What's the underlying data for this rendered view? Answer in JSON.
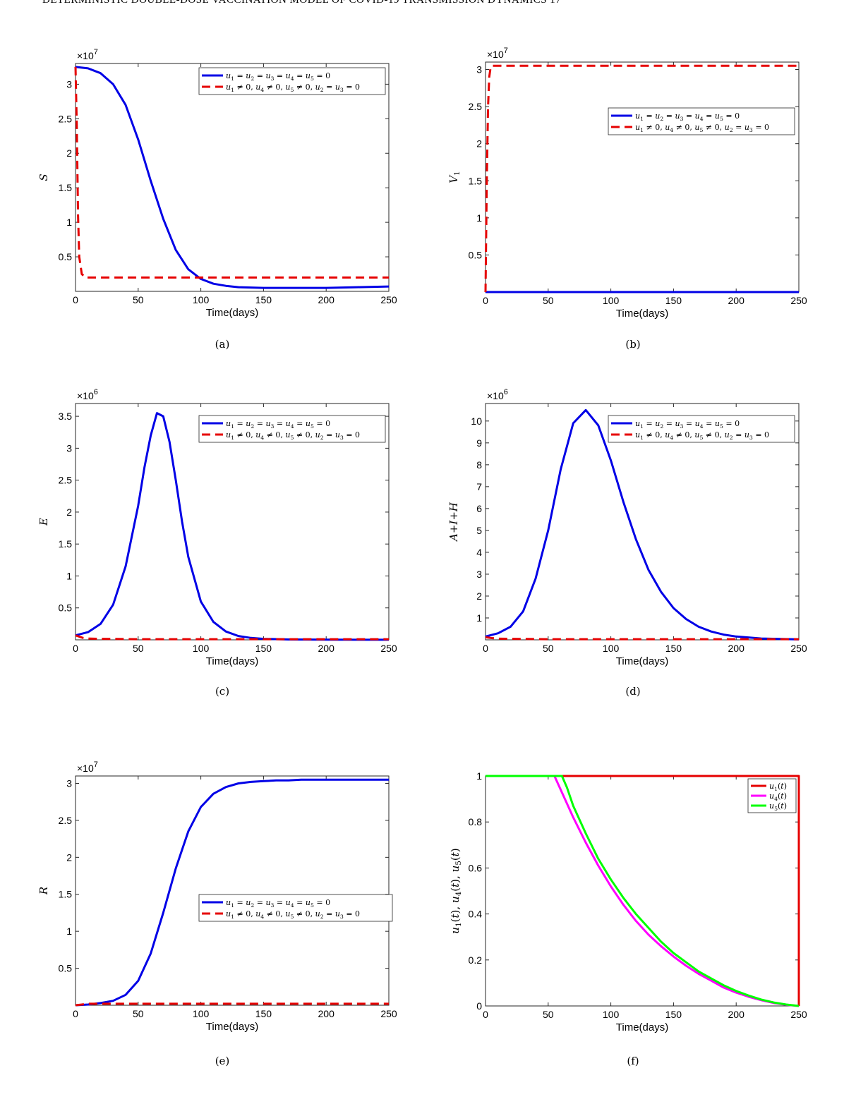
{
  "running_header": "DETERMINISTIC DOUBLE-DOSE VACCINATION MODEL OF COVID-19 TRANSMISSION DYNAMICS 17",
  "colors": {
    "blue": "#0000e6",
    "red": "#e60000",
    "magenta": "#ff00ff",
    "green": "#00ff00",
    "axis": "#262626"
  },
  "chart_data": [
    {
      "id": "a",
      "type": "line",
      "caption": "(a)",
      "xlabel": "Time(days)",
      "ylabel": "S",
      "multiplier": "×10^7",
      "multiplier_base": "×10",
      "multiplier_exp": "7",
      "xlim": [
        0,
        250
      ],
      "ylim": [
        0,
        3.3
      ],
      "xticks": [
        0,
        50,
        100,
        150,
        200,
        250
      ],
      "xtick_labels": [
        "0",
        "50",
        "100",
        "150",
        "200",
        "250"
      ],
      "yticks": [
        0.5,
        1,
        1.5,
        2,
        2.5,
        3
      ],
      "ytick_labels": [
        "0.5",
        "1",
        "1.5",
        "2",
        "2.5",
        "3"
      ],
      "legend": {
        "position": "top-right",
        "entries": [
          "u1 = u2 = u3 = u4 = u5 = 0",
          "u1 ≠ 0, u4 ≠ 0, u5 ≠ 0, u2 = u3 = 0"
        ]
      },
      "series": [
        {
          "name": "u1 = u2 = u3 = u4 = u5 = 0",
          "color": "#0000e6",
          "dash": "solid",
          "x": [
            0,
            10,
            20,
            30,
            40,
            50,
            60,
            70,
            80,
            90,
            100,
            110,
            120,
            130,
            150,
            175,
            200,
            225,
            250
          ],
          "y": [
            3.25,
            3.23,
            3.16,
            3.0,
            2.7,
            2.2,
            1.6,
            1.05,
            0.6,
            0.32,
            0.18,
            0.11,
            0.08,
            0.06,
            0.05,
            0.05,
            0.05,
            0.06,
            0.07
          ]
        },
        {
          "name": "u1 ≠ 0, u4 ≠ 0, u5 ≠ 0, u2 = u3 = 0",
          "color": "#e60000",
          "dash": "dashed",
          "x": [
            0,
            1,
            2,
            3,
            5,
            8,
            15,
            50,
            100,
            150,
            200,
            250
          ],
          "y": [
            3.25,
            2.4,
            1.1,
            0.5,
            0.25,
            0.2,
            0.2,
            0.2,
            0.2,
            0.2,
            0.2,
            0.2
          ]
        }
      ]
    },
    {
      "id": "b",
      "type": "line",
      "caption": "(b)",
      "xlabel": "Time(days)",
      "ylabel": "V1",
      "multiplier": "×10^7",
      "multiplier_base": "×10",
      "multiplier_exp": "7",
      "xlim": [
        0,
        250
      ],
      "ylim": [
        0,
        3.1
      ],
      "xticks": [
        0,
        50,
        100,
        150,
        200,
        250
      ],
      "xtick_labels": [
        "0",
        "50",
        "100",
        "150",
        "200",
        "250"
      ],
      "yticks": [
        0.5,
        1,
        1.5,
        2,
        2.5,
        3
      ],
      "ytick_labels": [
        "0.5",
        "1",
        "1.5",
        "2",
        "2.5",
        "3"
      ],
      "legend": {
        "position": "top-right",
        "entries": [
          "u1 = u2 = u3 = u4 = u5 = 0",
          "u1 ≠ 0, u4 ≠ 0, u5 ≠ 0, u2 = u3 = 0"
        ]
      },
      "series": [
        {
          "name": "u1 = u2 = u3 = u4 = u5 = 0",
          "color": "#0000e6",
          "dash": "solid",
          "x": [
            0,
            50,
            100,
            150,
            200,
            250
          ],
          "y": [
            0,
            0,
            0,
            0,
            0,
            0
          ]
        },
        {
          "name": "u1 ≠ 0, u4 ≠ 0, u5 ≠ 0, u2 = u3 = 0",
          "color": "#e60000",
          "dash": "dashed",
          "x": [
            0,
            1,
            2,
            3,
            4,
            5,
            8,
            50,
            100,
            150,
            200,
            250
          ],
          "y": [
            0,
            1.5,
            2.5,
            2.9,
            3.02,
            3.05,
            3.05,
            3.05,
            3.05,
            3.05,
            3.05,
            3.05
          ]
        }
      ]
    },
    {
      "id": "c",
      "type": "line",
      "caption": "(c)",
      "xlabel": "Time(days)",
      "ylabel": "E",
      "multiplier": "×10^6",
      "multiplier_base": "×10",
      "multiplier_exp": "6",
      "xlim": [
        0,
        250
      ],
      "ylim": [
        0,
        3.7
      ],
      "xticks": [
        0,
        50,
        100,
        150,
        200,
        250
      ],
      "xtick_labels": [
        "0",
        "50",
        "100",
        "150",
        "200",
        "250"
      ],
      "yticks": [
        0.5,
        1,
        1.5,
        2,
        2.5,
        3,
        3.5
      ],
      "ytick_labels": [
        "0.5",
        "1",
        "1.5",
        "2",
        "2.5",
        "3",
        "3.5"
      ],
      "legend": {
        "position": "top-right",
        "entries": [
          "u1 = u2 = u3 = u4 = u5 = 0",
          "u1 ≠ 0, u4 ≠ 0, u5 ≠ 0, u2 = u3 = 0"
        ]
      },
      "series": [
        {
          "name": "u1 = u2 = u3 = u4 = u5 = 0",
          "color": "#0000e6",
          "dash": "solid",
          "x": [
            0,
            10,
            20,
            30,
            40,
            50,
            55,
            60,
            65,
            70,
            75,
            80,
            85,
            90,
            100,
            110,
            120,
            130,
            140,
            150,
            170,
            200,
            250
          ],
          "y": [
            0.07,
            0.12,
            0.25,
            0.55,
            1.15,
            2.1,
            2.7,
            3.2,
            3.55,
            3.5,
            3.1,
            2.5,
            1.85,
            1.3,
            0.6,
            0.28,
            0.13,
            0.06,
            0.03,
            0.015,
            0.005,
            0.002,
            0.001
          ]
        },
        {
          "name": "u1 ≠ 0, u4 ≠ 0, u5 ≠ 0, u2 = u3 = 0",
          "color": "#e60000",
          "dash": "dashed",
          "x": [
            0,
            3,
            6,
            10,
            20,
            50,
            100,
            150,
            200,
            250
          ],
          "y": [
            0.07,
            0.05,
            0.03,
            0.02,
            0.015,
            0.01,
            0.01,
            0.01,
            0.01,
            0.01
          ]
        }
      ]
    },
    {
      "id": "d",
      "type": "line",
      "caption": "(d)",
      "xlabel": "Time(days)",
      "ylabel": "A+I+H",
      "multiplier": "×10^6",
      "multiplier_base": "×10",
      "multiplier_exp": "6",
      "xlim": [
        0,
        250
      ],
      "ylim": [
        0,
        10.8
      ],
      "xticks": [
        0,
        50,
        100,
        150,
        200,
        250
      ],
      "xtick_labels": [
        "0",
        "50",
        "100",
        "150",
        "200",
        "250"
      ],
      "yticks": [
        1,
        2,
        3,
        4,
        5,
        6,
        7,
        8,
        9,
        10
      ],
      "ytick_labels": [
        "1",
        "2",
        "3",
        "4",
        "5",
        "6",
        "7",
        "8",
        "9",
        "10"
      ],
      "legend": {
        "position": "top-right",
        "entries": [
          "u1 = u2 = u3 = u4 = u5 = 0",
          "u1 ≠ 0, u4 ≠ 0, u5 ≠ 0, u2 = u3 = 0"
        ]
      },
      "series": [
        {
          "name": "u1 = u2 = u3 = u4 = u5 = 0",
          "color": "#0000e6",
          "dash": "solid",
          "x": [
            0,
            10,
            20,
            30,
            40,
            50,
            60,
            70,
            80,
            90,
            100,
            110,
            120,
            130,
            140,
            150,
            160,
            170,
            180,
            190,
            200,
            220,
            250
          ],
          "y": [
            0.15,
            0.3,
            0.6,
            1.3,
            2.8,
            5.0,
            7.8,
            9.9,
            10.5,
            9.8,
            8.2,
            6.3,
            4.6,
            3.2,
            2.2,
            1.45,
            0.95,
            0.6,
            0.38,
            0.24,
            0.15,
            0.06,
            0.02
          ]
        },
        {
          "name": "u1 ≠ 0, u4 ≠ 0, u5 ≠ 0, u2 = u3 = 0",
          "color": "#e60000",
          "dash": "dashed",
          "x": [
            0,
            5,
            10,
            50,
            100,
            150,
            200,
            250
          ],
          "y": [
            0.12,
            0.08,
            0.05,
            0.03,
            0.03,
            0.03,
            0.03,
            0.03
          ]
        }
      ]
    },
    {
      "id": "e",
      "type": "line",
      "caption": "(e)",
      "xlabel": "Time(days)",
      "ylabel": "R",
      "multiplier": "×10^7",
      "multiplier_base": "×10",
      "multiplier_exp": "7",
      "xlim": [
        0,
        250
      ],
      "ylim": [
        0,
        3.1
      ],
      "xticks": [
        0,
        50,
        100,
        150,
        200,
        250
      ],
      "xtick_labels": [
        "0",
        "50",
        "100",
        "150",
        "200",
        "250"
      ],
      "yticks": [
        0.5,
        1,
        1.5,
        2,
        2.5,
        3
      ],
      "ytick_labels": [
        "0.5",
        "1",
        "1.5",
        "2",
        "2.5",
        "3"
      ],
      "legend": {
        "position": "center-right",
        "entries": [
          "u1 = u2 = u3 = u4 = u5 = 0",
          "u1 ≠ 0, u4 ≠ 0, u5 ≠ 0, u2 = u3 = 0"
        ]
      },
      "series": [
        {
          "name": "u1 = u2 = u3 = u4 = u5 = 0",
          "color": "#0000e6",
          "dash": "solid",
          "x": [
            0,
            10,
            20,
            30,
            40,
            50,
            60,
            70,
            80,
            90,
            100,
            110,
            120,
            130,
            140,
            150,
            160,
            170,
            180,
            200,
            220,
            250
          ],
          "y": [
            0.0,
            0.01,
            0.03,
            0.06,
            0.14,
            0.33,
            0.7,
            1.25,
            1.85,
            2.35,
            2.68,
            2.86,
            2.95,
            3.0,
            3.02,
            3.03,
            3.04,
            3.04,
            3.05,
            3.05,
            3.05,
            3.05
          ]
        },
        {
          "name": "u1 ≠ 0, u4 ≠ 0, u5 ≠ 0, u2 = u3 = 0",
          "color": "#e60000",
          "dash": "dashed",
          "x": [
            0,
            5,
            10,
            50,
            100,
            150,
            200,
            250
          ],
          "y": [
            0.0,
            0.01,
            0.02,
            0.02,
            0.02,
            0.02,
            0.02,
            0.02
          ]
        }
      ]
    },
    {
      "id": "f",
      "type": "line",
      "caption": "(f)",
      "xlabel": "Time(days)",
      "ylabel": "u1(t), u4(t), u5(t)",
      "multiplier": "",
      "xlim": [
        0,
        250
      ],
      "ylim": [
        0,
        1
      ],
      "xticks": [
        0,
        50,
        100,
        150,
        200,
        250
      ],
      "xtick_labels": [
        "0",
        "50",
        "100",
        "150",
        "200",
        "250"
      ],
      "yticks": [
        0,
        0.2,
        0.4,
        0.6,
        0.8,
        1
      ],
      "ytick_labels": [
        "0",
        "0.2",
        "0.4",
        "0.6",
        "0.8",
        "1"
      ],
      "legend": {
        "position": "top-right",
        "entries": [
          "u1(t)",
          "u4(t)",
          "u5(t)"
        ]
      },
      "series": [
        {
          "name": "u1(t)",
          "color": "#e60000",
          "dash": "solid",
          "x": [
            0,
            250,
            250
          ],
          "y": [
            1,
            1,
            0
          ]
        },
        {
          "name": "u4(t)",
          "color": "#ff00ff",
          "dash": "solid",
          "x": [
            0,
            55,
            60,
            70,
            80,
            90,
            100,
            110,
            120,
            130,
            140,
            150,
            160,
            170,
            180,
            190,
            200,
            210,
            220,
            230,
            240,
            250
          ],
          "y": [
            1,
            1,
            0.94,
            0.82,
            0.71,
            0.61,
            0.52,
            0.44,
            0.37,
            0.31,
            0.26,
            0.215,
            0.175,
            0.14,
            0.11,
            0.08,
            0.058,
            0.04,
            0.025,
            0.013,
            0.005,
            0
          ]
        },
        {
          "name": "u5(t)",
          "color": "#00ff00",
          "dash": "solid",
          "x": [
            0,
            61,
            65,
            70,
            80,
            90,
            100,
            110,
            120,
            130,
            140,
            150,
            160,
            170,
            180,
            190,
            200,
            210,
            220,
            230,
            240,
            250
          ],
          "y": [
            1,
            1,
            0.95,
            0.87,
            0.75,
            0.64,
            0.55,
            0.47,
            0.4,
            0.34,
            0.28,
            0.23,
            0.19,
            0.15,
            0.12,
            0.09,
            0.065,
            0.045,
            0.028,
            0.015,
            0.006,
            0
          ]
        }
      ]
    }
  ]
}
